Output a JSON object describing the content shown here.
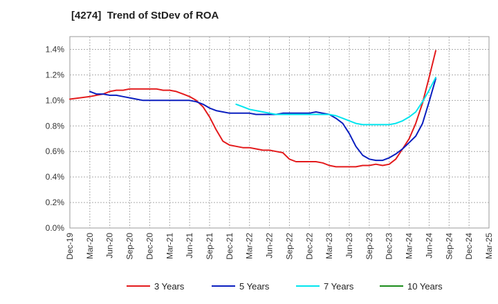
{
  "chart_data": {
    "type": "line",
    "title": "[4274]  Trend of StDev of ROA",
    "xlabel": "",
    "ylabel": "",
    "ylim": [
      0,
      1.5
    ],
    "y_ticks": [
      "0.0%",
      "0.2%",
      "0.4%",
      "0.6%",
      "0.8%",
      "1.0%",
      "1.2%",
      "1.4%"
    ],
    "y_tick_values": [
      0,
      0.2,
      0.4,
      0.6,
      0.8,
      1.0,
      1.2,
      1.4
    ],
    "categories": [
      "Dec-19",
      "Mar-20",
      "Jun-20",
      "Sep-20",
      "Dec-20",
      "Mar-21",
      "Jun-21",
      "Sep-21",
      "Dec-21",
      "Mar-22",
      "Jun-22",
      "Sep-22",
      "Dec-22",
      "Mar-23",
      "Jun-23",
      "Sep-23",
      "Dec-23",
      "Mar-24",
      "Jun-24",
      "Sep-24",
      "Dec-24",
      "Mar-25"
    ],
    "grid": true,
    "legend_position": "bottom",
    "series": [
      {
        "name": "3 Years",
        "color": "#e31a1c",
        "points": [
          [
            0,
            1.01
          ],
          [
            1,
            1.03
          ],
          [
            1.33,
            1.04
          ],
          [
            1.67,
            1.05
          ],
          [
            2,
            1.07
          ],
          [
            2.33,
            1.08
          ],
          [
            2.67,
            1.08
          ],
          [
            3,
            1.09
          ],
          [
            3.33,
            1.09
          ],
          [
            3.67,
            1.09
          ],
          [
            4,
            1.09
          ],
          [
            4.33,
            1.09
          ],
          [
            4.67,
            1.08
          ],
          [
            5,
            1.08
          ],
          [
            5.33,
            1.07
          ],
          [
            5.67,
            1.05
          ],
          [
            6,
            1.03
          ],
          [
            6.33,
            1.0
          ],
          [
            6.67,
            0.95
          ],
          [
            7,
            0.87
          ],
          [
            7.33,
            0.77
          ],
          [
            7.67,
            0.68
          ],
          [
            8,
            0.65
          ],
          [
            8.33,
            0.64
          ],
          [
            8.67,
            0.63
          ],
          [
            9,
            0.63
          ],
          [
            9.33,
            0.62
          ],
          [
            9.67,
            0.61
          ],
          [
            10,
            0.61
          ],
          [
            10.33,
            0.6
          ],
          [
            10.67,
            0.59
          ],
          [
            11,
            0.54
          ],
          [
            11.33,
            0.52
          ],
          [
            11.67,
            0.52
          ],
          [
            12,
            0.52
          ],
          [
            12.33,
            0.52
          ],
          [
            12.67,
            0.51
          ],
          [
            13,
            0.49
          ],
          [
            13.33,
            0.48
          ],
          [
            13.67,
            0.48
          ],
          [
            14,
            0.48
          ],
          [
            14.33,
            0.48
          ],
          [
            14.67,
            0.49
          ],
          [
            15,
            0.49
          ],
          [
            15.33,
            0.5
          ],
          [
            15.67,
            0.49
          ],
          [
            16,
            0.5
          ],
          [
            16.33,
            0.54
          ],
          [
            16.67,
            0.62
          ],
          [
            17,
            0.7
          ],
          [
            17.33,
            0.82
          ],
          [
            17.67,
            0.98
          ],
          [
            18,
            1.18
          ],
          [
            18.33,
            1.39
          ]
        ]
      },
      {
        "name": "5 Years",
        "color": "#0a1ebf",
        "points": [
          [
            1,
            1.07
          ],
          [
            1.33,
            1.05
          ],
          [
            1.67,
            1.05
          ],
          [
            2,
            1.04
          ],
          [
            2.33,
            1.04
          ],
          [
            2.67,
            1.03
          ],
          [
            3,
            1.02
          ],
          [
            3.33,
            1.01
          ],
          [
            3.67,
            1.0
          ],
          [
            4,
            1.0
          ],
          [
            4.33,
            1.0
          ],
          [
            4.67,
            1.0
          ],
          [
            5,
            1.0
          ],
          [
            5.33,
            1.0
          ],
          [
            5.67,
            1.0
          ],
          [
            6,
            1.0
          ],
          [
            6.33,
            0.99
          ],
          [
            6.67,
            0.97
          ],
          [
            7,
            0.94
          ],
          [
            7.33,
            0.92
          ],
          [
            7.67,
            0.91
          ],
          [
            8,
            0.9
          ],
          [
            8.33,
            0.9
          ],
          [
            8.67,
            0.9
          ],
          [
            9,
            0.9
          ],
          [
            9.33,
            0.89
          ],
          [
            9.67,
            0.89
          ],
          [
            10,
            0.89
          ],
          [
            10.33,
            0.89
          ],
          [
            10.67,
            0.9
          ],
          [
            11,
            0.9
          ],
          [
            11.33,
            0.9
          ],
          [
            11.67,
            0.9
          ],
          [
            12,
            0.9
          ],
          [
            12.33,
            0.91
          ],
          [
            12.67,
            0.9
          ],
          [
            13,
            0.89
          ],
          [
            13.33,
            0.86
          ],
          [
            13.67,
            0.82
          ],
          [
            14,
            0.74
          ],
          [
            14.33,
            0.64
          ],
          [
            14.67,
            0.57
          ],
          [
            15,
            0.54
          ],
          [
            15.33,
            0.53
          ],
          [
            15.67,
            0.53
          ],
          [
            16,
            0.55
          ],
          [
            16.33,
            0.58
          ],
          [
            16.67,
            0.62
          ],
          [
            17,
            0.67
          ],
          [
            17.33,
            0.72
          ],
          [
            17.67,
            0.82
          ],
          [
            18,
            0.99
          ],
          [
            18.33,
            1.17
          ]
        ]
      },
      {
        "name": "7 Years",
        "color": "#00e5ee",
        "points": [
          [
            8.33,
            0.97
          ],
          [
            8.67,
            0.95
          ],
          [
            9,
            0.93
          ],
          [
            9.33,
            0.92
          ],
          [
            9.67,
            0.91
          ],
          [
            10,
            0.9
          ],
          [
            10.33,
            0.89
          ],
          [
            10.67,
            0.89
          ],
          [
            11,
            0.89
          ],
          [
            11.33,
            0.89
          ],
          [
            11.67,
            0.89
          ],
          [
            12,
            0.89
          ],
          [
            12.33,
            0.89
          ],
          [
            12.67,
            0.89
          ],
          [
            13,
            0.89
          ],
          [
            13.33,
            0.88
          ],
          [
            13.67,
            0.86
          ],
          [
            14,
            0.84
          ],
          [
            14.33,
            0.82
          ],
          [
            14.67,
            0.81
          ],
          [
            15,
            0.81
          ],
          [
            15.33,
            0.81
          ],
          [
            15.67,
            0.81
          ],
          [
            16,
            0.81
          ],
          [
            16.33,
            0.82
          ],
          [
            16.67,
            0.84
          ],
          [
            17,
            0.87
          ],
          [
            17.33,
            0.91
          ],
          [
            17.67,
            0.99
          ],
          [
            18,
            1.08
          ],
          [
            18.33,
            1.18
          ]
        ]
      },
      {
        "name": "10 Years",
        "color": "#1a8c1a",
        "points": []
      }
    ]
  }
}
